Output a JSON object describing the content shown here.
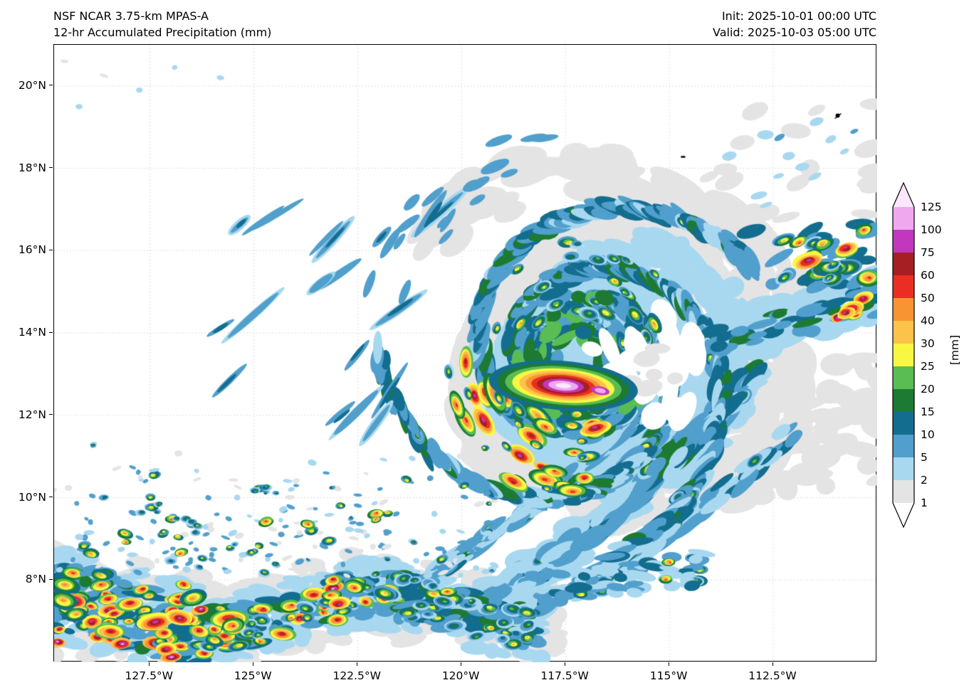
{
  "chart_data": {
    "type": "heatmap",
    "model": "NSF NCAR 3.75-km MPAS-A",
    "title": "12-hr Accumulated Precipitation (mm)",
    "init": "Init: 2025-10-01 00:00 UTC",
    "valid": "Valid: 2025-10-03 05:00 UTC",
    "extent": {
      "lon": [
        -129.8,
        -110.0
      ],
      "lat": [
        6.0,
        21.0
      ]
    },
    "x_ticks": [
      {
        "lon": -127.5,
        "label": "127.5°W"
      },
      {
        "lon": -125.0,
        "label": "125°W"
      },
      {
        "lon": -122.5,
        "label": "122.5°W"
      },
      {
        "lon": -120.0,
        "label": "120°W"
      },
      {
        "lon": -117.5,
        "label": "117.5°W"
      },
      {
        "lon": -115.0,
        "label": "115°W"
      },
      {
        "lon": -112.5,
        "label": "112.5°W"
      }
    ],
    "y_ticks": [
      {
        "lat": 8,
        "label": "8°N"
      },
      {
        "lat": 10,
        "label": "10°N"
      },
      {
        "lat": 12,
        "label": "12°N"
      },
      {
        "lat": 14,
        "label": "14°N"
      },
      {
        "lat": 16,
        "label": "16°N"
      },
      {
        "lat": 18,
        "label": "18°N"
      },
      {
        "lat": 20,
        "label": "20°N"
      }
    ],
    "grid": true,
    "colorbar": {
      "levels": [
        1,
        2,
        5,
        10,
        15,
        20,
        25,
        30,
        40,
        50,
        60,
        75,
        100,
        125
      ],
      "labels": [
        "1",
        "2",
        "5",
        "10",
        "15",
        "20",
        "25",
        "30",
        "40",
        "50",
        "60",
        "75",
        "100",
        "125"
      ],
      "colors": [
        "#e4e4e4",
        "#a8d8f0",
        "#519fcc",
        "#136d8f",
        "#1d7a33",
        "#59bd53",
        "#faf743",
        "#fcc24a",
        "#f99432",
        "#ec2d23",
        "#a61f22",
        "#c138bf",
        "#efa8ee"
      ],
      "under": "#ffffff",
      "over": "#fbe7fb",
      "extend": "both",
      "unit_label": "[mm]",
      "position": "right"
    },
    "features": {
      "cyclone": {
        "description": "Tropical cyclone with spiral rainbands and a clear moat east of center",
        "center_lon": -117.2,
        "center_lat": 13.3,
        "core_lon": -117.55,
        "core_lat": 12.72,
        "core_max_mm": "100-125+"
      },
      "ne_cluster": {
        "lon": -111.4,
        "lat": 15.85,
        "max_mm": "75-100"
      },
      "itcz": {
        "description": "ITCZ convective band with embedded intense cells",
        "lat_center": 7.3,
        "lon_range": [
          -129.8,
          -114.2
        ],
        "max_mm": "100-125"
      },
      "feeder_bands": {
        "description": "SW-NE oriented rainbands connecting the ITCZ to the cyclone southeast quadrant"
      },
      "nw_streaks": {
        "description": "Thin NE-SW shower streaks northwest of the cyclone"
      }
    }
  }
}
